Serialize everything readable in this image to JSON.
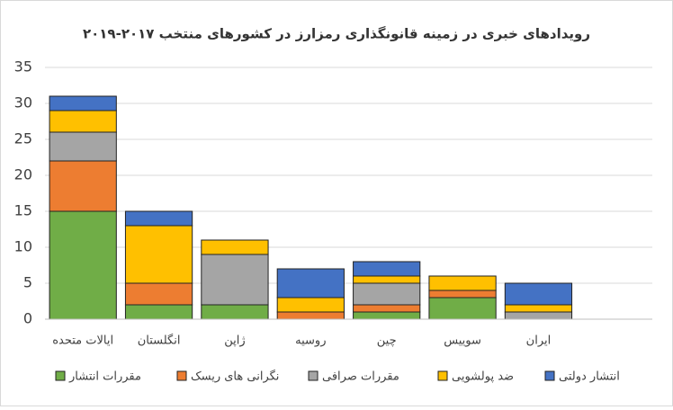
{
  "chart_data": {
    "type": "stacked_bar",
    "title": "رویدادهای خبری در زمینه قانونگذاری رمزارز در کشورهای منتخب ۲۰۱۷-۲۰۱۹",
    "categories": [
      "ایالات متحده",
      "انگلستان",
      "ژاپن",
      "روسیه",
      "چین",
      "سوییس",
      "ایران",
      null
    ],
    "series": [
      {
        "name": "مقررات انتشار",
        "color": "#70ad47",
        "values": [
          15,
          2,
          2,
          0,
          1,
          3,
          0,
          null
        ]
      },
      {
        "name": "نگرانی های ریسک",
        "color": "#ed7d31",
        "values": [
          7,
          3,
          0,
          1,
          1,
          1,
          0,
          null
        ]
      },
      {
        "name": "مقررات صرافی",
        "color": "#a5a5a5",
        "values": [
          4,
          0,
          7,
          0,
          3,
          0,
          1,
          null
        ]
      },
      {
        "name": "ضد پولشویی",
        "color": "#ffc000",
        "values": [
          3,
          8,
          2,
          2,
          1,
          2,
          1,
          null
        ]
      },
      {
        "name": "انتشار دولتی",
        "color": "#4472c4",
        "values": [
          2,
          2,
          0,
          4,
          2,
          0,
          3,
          null
        ]
      }
    ],
    "ylim": [
      0,
      35
    ],
    "yticks": [
      0,
      5,
      10,
      15,
      20,
      25,
      30,
      35
    ],
    "grid": true,
    "legend": "bottom"
  }
}
